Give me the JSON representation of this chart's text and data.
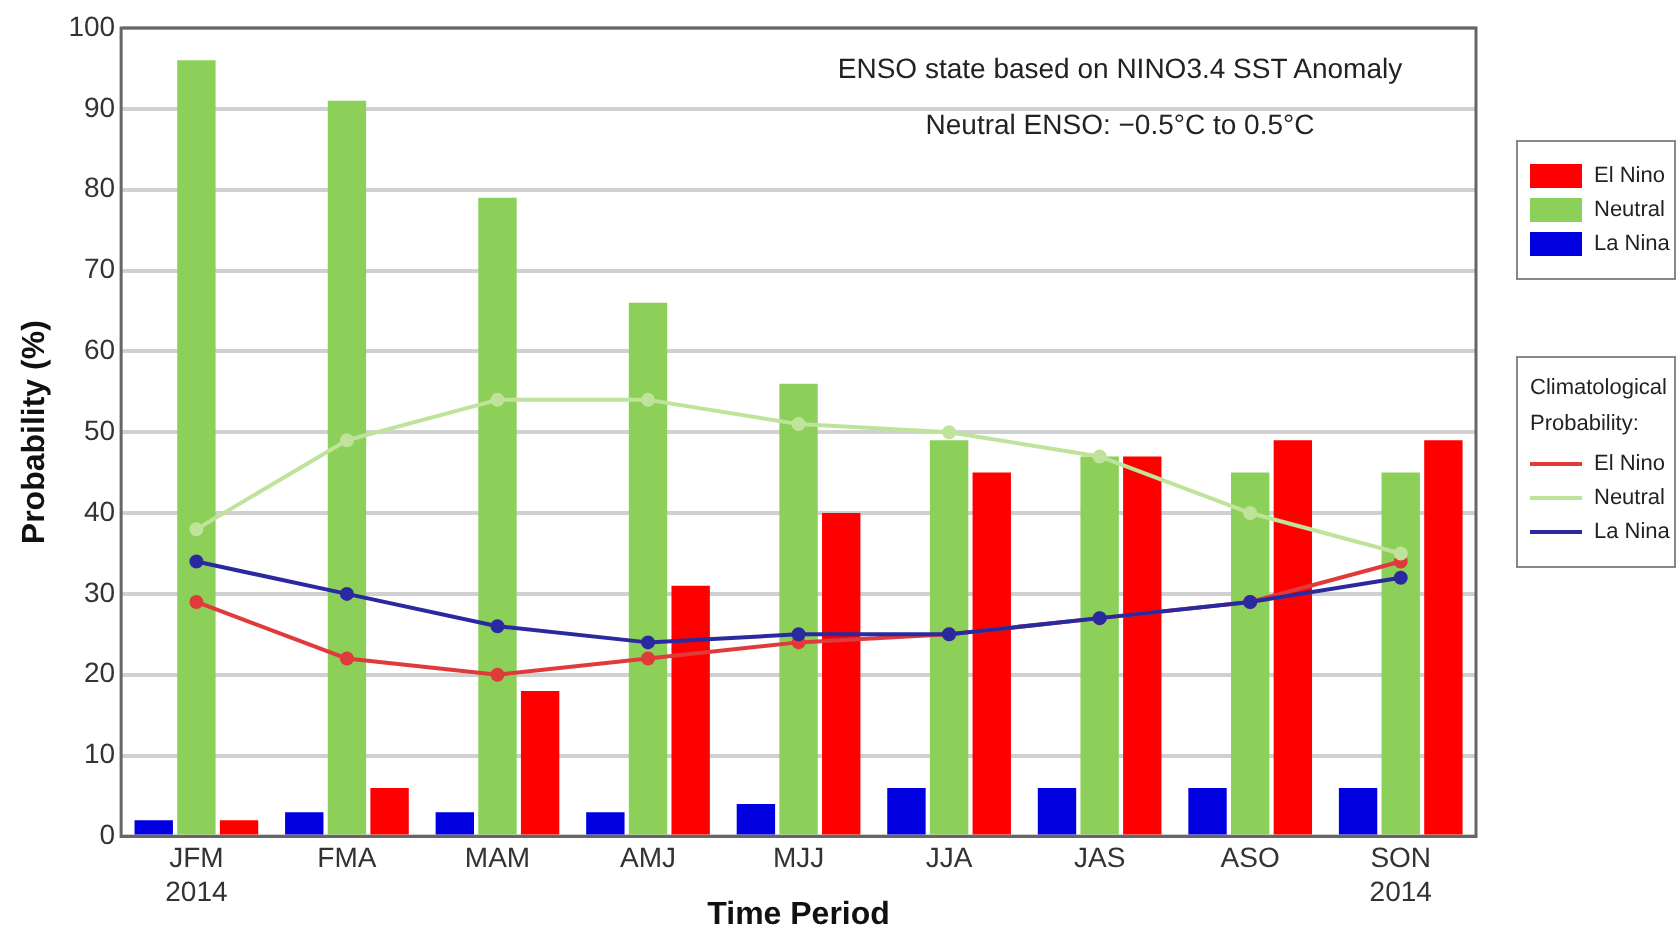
{
  "chart_data": {
    "type": "bar",
    "xlabel": "Time Period",
    "ylabel": "Probability (%)",
    "categories": [
      "JFM\n2014",
      "FMA",
      "MAM",
      "AMJ",
      "MJJ",
      "JJA",
      "JAS",
      "ASO",
      "SON\n2014"
    ],
    "series": [
      {
        "name": "El Nino",
        "color": "#ff0000",
        "values": [
          2,
          6,
          18,
          31,
          40,
          45,
          47,
          49,
          49
        ]
      },
      {
        "name": "Neutral",
        "color": "#8cd05a",
        "values": [
          96,
          91,
          79,
          66,
          56,
          49,
          47,
          45,
          45
        ]
      },
      {
        "name": "La Nina",
        "color": "#0000e0",
        "values": [
          2,
          3,
          3,
          3,
          4,
          6,
          6,
          6,
          6
        ]
      },
      {
        "name": "El Nino",
        "type": "line",
        "color": "#e03a3a",
        "values": [
          29,
          22,
          20,
          22,
          24,
          25,
          27,
          29,
          34
        ]
      },
      {
        "name": "Neutral",
        "type": "line",
        "color": "#bfe39a",
        "values": [
          38,
          49,
          54,
          54,
          51,
          50,
          47,
          40,
          35
        ]
      },
      {
        "name": "La Nina",
        "type": "line",
        "color": "#2a2aa0",
        "values": [
          34,
          30,
          26,
          24,
          25,
          25,
          27,
          29,
          32
        ]
      }
    ],
    "legend_title": "Climatological Probability:",
    "annotations": [
      "ENSO state based on NINO3.4 SST Anomaly",
      "Neutral ENSO: −0.5°C to 0.5°C"
    ],
    "ylim": [
      0,
      100
    ],
    "yticks": [
      0,
      10,
      20,
      30,
      40,
      50,
      60,
      70,
      80,
      90,
      100
    ],
    "grid": "y",
    "legend": "right",
    "marker": "circle"
  }
}
